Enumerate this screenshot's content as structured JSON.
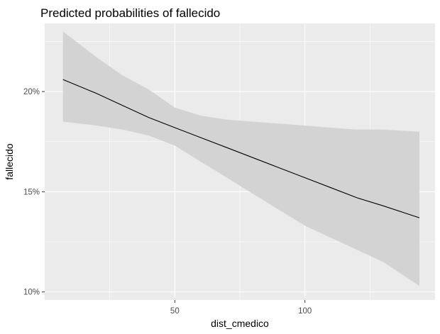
{
  "chart_data": {
    "type": "line",
    "title": "Predicted probabilities of fallecido",
    "xlabel": "dist_cmedico",
    "ylabel": "fallecido",
    "xlim": [
      0,
      150
    ],
    "ylim": [
      0.096,
      0.234
    ],
    "x_ticks": [
      {
        "value": 50,
        "label": "50"
      },
      {
        "value": 100,
        "label": "100"
      }
    ],
    "x_minor_ticks": [
      25,
      75,
      125
    ],
    "y_ticks": [
      {
        "value": 0.1,
        "label": "10%"
      },
      {
        "value": 0.15,
        "label": "15%"
      },
      {
        "value": 0.2,
        "label": "20%"
      }
    ],
    "y_minor_ticks": [
      0.125,
      0.175,
      0.225
    ],
    "grid": true,
    "colors": {
      "panel_background": "#ebebeb",
      "grid_major": "#ffffff",
      "ribbon": "#d3d3d3",
      "line": "#000000"
    },
    "series": [
      {
        "x": [
          7,
          20,
          30,
          40,
          50,
          60,
          70,
          80,
          90,
          100,
          110,
          120,
          130,
          144
        ],
        "y": [
          0.206,
          0.199,
          0.193,
          0.187,
          0.182,
          0.177,
          0.172,
          0.167,
          0.162,
          0.157,
          0.152,
          0.147,
          0.143,
          0.137
        ],
        "lower": [
          0.185,
          0.183,
          0.181,
          0.178,
          0.173,
          0.165,
          0.157,
          0.149,
          0.141,
          0.133,
          0.127,
          0.121,
          0.115,
          0.103
        ],
        "upper": [
          0.23,
          0.217,
          0.208,
          0.201,
          0.192,
          0.188,
          0.186,
          0.185,
          0.184,
          0.183,
          0.182,
          0.181,
          0.181,
          0.18
        ]
      }
    ]
  }
}
